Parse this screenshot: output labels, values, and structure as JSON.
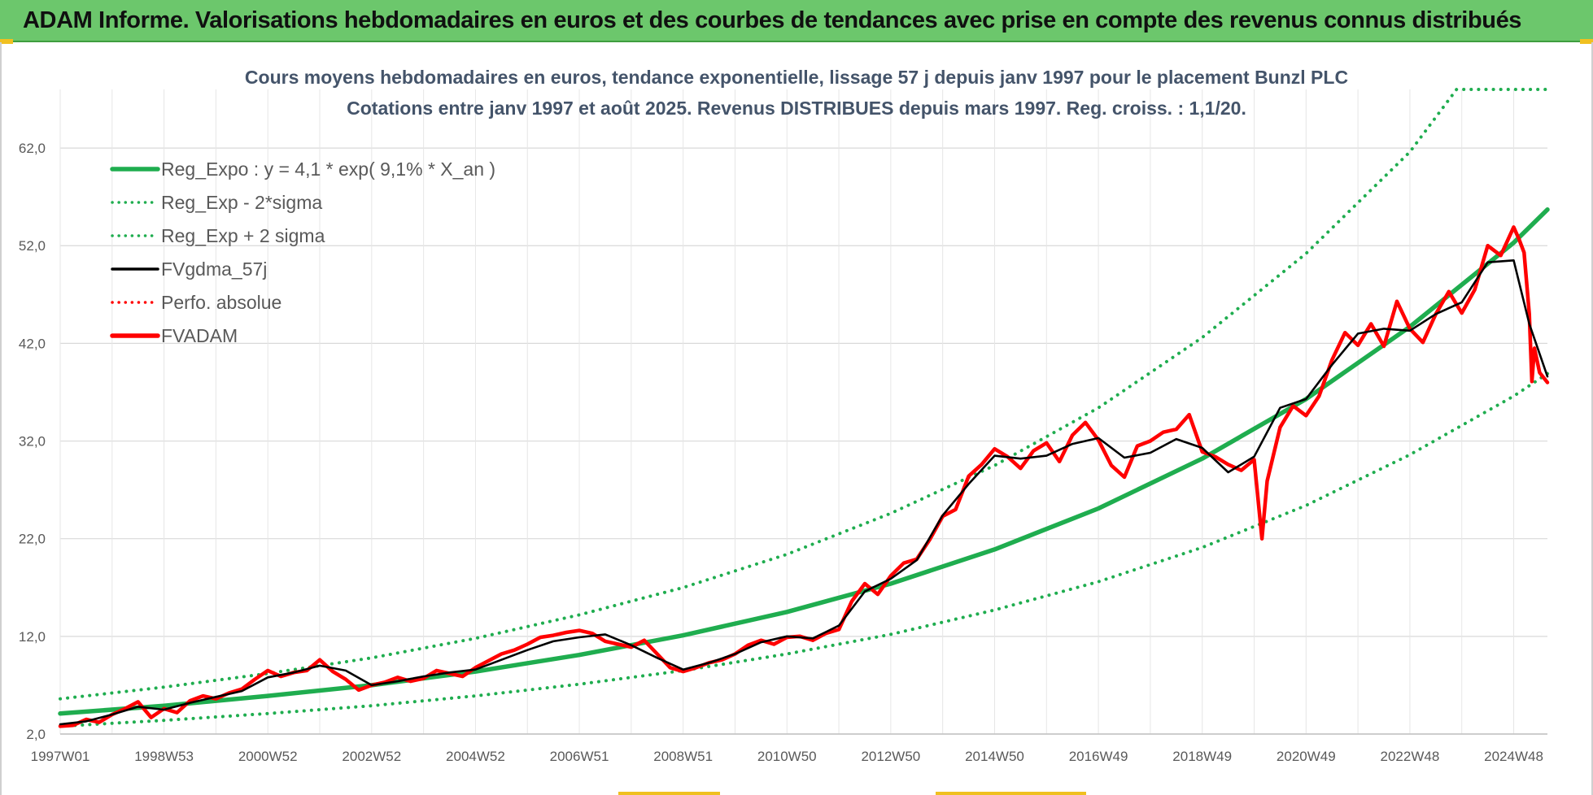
{
  "header": {
    "title": "ADAM Informe. Valorisations hebdomadaires en euros et des courbes de tendances avec prise en compte des revenus connus distribués"
  },
  "chart_data": {
    "type": "line",
    "title_line1": "Cours moyens hebdomadaires en euros, tendance exponentielle, lissage 57 j depuis janv 1997 pour le placement Bunzl PLC",
    "title_line2": "Cotations entre janv 1997 et août 2025.  Revenus DISTRIBUES depuis mars 1997. Reg. croiss. : 1,1/20.",
    "xlabel": "",
    "ylabel": "",
    "ylim": [
      2,
      68
    ],
    "xlim": [
      1997.0,
      2025.65
    ],
    "grid": true,
    "legend_position": "top-left",
    "y_ticks": [
      {
        "value": 2,
        "label": "2,0"
      },
      {
        "value": 12,
        "label": "12,0"
      },
      {
        "value": 22,
        "label": "22,0"
      },
      {
        "value": 32,
        "label": "32,0"
      },
      {
        "value": 42,
        "label": "42,0"
      },
      {
        "value": 52,
        "label": "52,0"
      },
      {
        "value": 62,
        "label": "62,0"
      }
    ],
    "x_ticks": [
      {
        "value": 1997.0,
        "label": "1997W01"
      },
      {
        "value": 1999.0,
        "label": "1998W53"
      },
      {
        "value": 2001.0,
        "label": "2000W52"
      },
      {
        "value": 2003.0,
        "label": "2002W52"
      },
      {
        "value": 2005.0,
        "label": "2004W52"
      },
      {
        "value": 2007.0,
        "label": "2006W51"
      },
      {
        "value": 2009.0,
        "label": "2008W51"
      },
      {
        "value": 2011.0,
        "label": "2010W50"
      },
      {
        "value": 2013.0,
        "label": "2012W50"
      },
      {
        "value": 2015.0,
        "label": "2014W50"
      },
      {
        "value": 2017.0,
        "label": "2016W49"
      },
      {
        "value": 2019.0,
        "label": "2018W49"
      },
      {
        "value": 2021.0,
        "label": "2020W49"
      },
      {
        "value": 2023.0,
        "label": "2022W48"
      },
      {
        "value": 2025.0,
        "label": "2024W48"
      }
    ],
    "series": [
      {
        "name": "Reg_Expo : y = 4,1 * exp( 9,1% *  X_an )",
        "color": "#1fad4f",
        "style": "solid",
        "x": [
          1997.0,
          1999.0,
          2001.0,
          2003.0,
          2005.0,
          2007.0,
          2009.0,
          2011.0,
          2013.0,
          2015.0,
          2017.0,
          2019.0,
          2021.0,
          2023.0,
          2025.0,
          2025.65
        ],
        "y": [
          4.1,
          4.9,
          5.9,
          7.0,
          8.4,
          10.1,
          12.1,
          14.5,
          17.4,
          20.9,
          25.1,
          30.2,
          36.3,
          43.7,
          52.3,
          55.7
        ]
      },
      {
        "name": "Reg_Exp - 2*sigma",
        "color": "#1fad4f",
        "style": "dotted",
        "x": [
          1997.0,
          1999.0,
          2001.0,
          2003.0,
          2005.0,
          2007.0,
          2009.0,
          2011.0,
          2013.0,
          2015.0,
          2017.0,
          2019.0,
          2021.0,
          2023.0,
          2025.0,
          2025.65
        ],
        "y": [
          2.8,
          3.4,
          4.1,
          4.9,
          5.9,
          7.1,
          8.5,
          10.2,
          12.2,
          14.7,
          17.6,
          21.1,
          25.4,
          30.6,
          36.6,
          38.9
        ]
      },
      {
        "name": "Reg_Exp + 2 sigma",
        "color": "#1fad4f",
        "style": "dotted",
        "x": [
          1997.0,
          1999.0,
          2001.0,
          2003.0,
          2005.0,
          2007.0,
          2009.0,
          2011.0,
          2013.0,
          2015.0,
          2017.0,
          2019.0,
          2021.0,
          2023.0,
          2023.9,
          2025.65
        ],
        "y": [
          5.6,
          6.8,
          8.2,
          9.8,
          11.8,
          14.2,
          17.0,
          20.4,
          24.6,
          29.5,
          35.4,
          42.6,
          51.2,
          61.6,
          68.0,
          68.0
        ]
      },
      {
        "name": "FVgdma_57j",
        "color": "#000000",
        "style": "solid",
        "x": [
          1997.0,
          1997.5,
          1998.0,
          1998.5,
          1999.0,
          1999.5,
          2000.0,
          2000.5,
          2001.0,
          2001.5,
          2002.0,
          2002.5,
          2003.0,
          2003.5,
          2004.0,
          2004.5,
          2005.0,
          2005.5,
          2006.0,
          2006.5,
          2007.0,
          2007.5,
          2008.0,
          2008.5,
          2009.0,
          2009.5,
          2010.0,
          2010.5,
          2011.0,
          2011.5,
          2012.0,
          2012.5,
          2013.0,
          2013.5,
          2014.0,
          2014.5,
          2015.0,
          2015.5,
          2016.0,
          2016.5,
          2017.0,
          2017.5,
          2018.0,
          2018.5,
          2019.0,
          2019.5,
          2020.0,
          2020.5,
          2021.0,
          2021.5,
          2022.0,
          2022.5,
          2023.0,
          2023.5,
          2024.0,
          2024.5,
          2025.0,
          2025.3,
          2025.65
        ],
        "y": [
          3.0,
          3.3,
          4.0,
          4.8,
          4.5,
          5.2,
          5.8,
          6.4,
          7.8,
          8.3,
          9.0,
          8.5,
          7.0,
          7.4,
          7.9,
          8.3,
          8.6,
          9.6,
          10.6,
          11.5,
          11.9,
          12.2,
          11.1,
          9.8,
          8.6,
          9.3,
          10.2,
          11.4,
          12.0,
          11.8,
          13.1,
          16.6,
          17.9,
          19.8,
          24.4,
          27.6,
          30.5,
          30.2,
          30.5,
          31.7,
          32.3,
          30.3,
          30.8,
          32.2,
          31.3,
          28.8,
          30.4,
          35.4,
          36.3,
          39.8,
          43.0,
          43.5,
          43.3,
          45.0,
          46.2,
          50.3,
          50.5,
          44.0,
          38.6
        ]
      },
      {
        "name": "Perfo. absolue",
        "color": "#ff0000",
        "style": "dotted",
        "x": [],
        "y": []
      },
      {
        "name": "FVADAM",
        "color": "#ff0000",
        "style": "solid",
        "x": [
          1997.0,
          1997.25,
          1997.5,
          1997.75,
          1998.0,
          1998.25,
          1998.5,
          1998.75,
          1999.0,
          1999.25,
          1999.5,
          1999.75,
          2000.0,
          2000.25,
          2000.5,
          2000.75,
          2001.0,
          2001.25,
          2001.5,
          2001.75,
          2002.0,
          2002.25,
          2002.5,
          2002.75,
          2003.0,
          2003.25,
          2003.5,
          2003.75,
          2004.0,
          2004.25,
          2004.5,
          2004.75,
          2005.0,
          2005.25,
          2005.5,
          2005.75,
          2006.0,
          2006.25,
          2006.5,
          2006.75,
          2007.0,
          2007.25,
          2007.5,
          2007.75,
          2008.0,
          2008.25,
          2008.5,
          2008.75,
          2009.0,
          2009.25,
          2009.5,
          2009.75,
          2010.0,
          2010.25,
          2010.5,
          2010.75,
          2011.0,
          2011.25,
          2011.5,
          2011.75,
          2012.0,
          2012.25,
          2012.5,
          2012.75,
          2013.0,
          2013.25,
          2013.5,
          2013.75,
          2014.0,
          2014.25,
          2014.5,
          2014.75,
          2015.0,
          2015.25,
          2015.5,
          2015.75,
          2016.0,
          2016.25,
          2016.5,
          2016.75,
          2017.0,
          2017.25,
          2017.5,
          2017.75,
          2018.0,
          2018.25,
          2018.5,
          2018.75,
          2019.0,
          2019.25,
          2019.5,
          2019.75,
          2020.0,
          2020.15,
          2020.25,
          2020.5,
          2020.75,
          2021.0,
          2021.25,
          2021.5,
          2021.75,
          2022.0,
          2022.25,
          2022.5,
          2022.75,
          2023.0,
          2023.25,
          2023.5,
          2023.75,
          2024.0,
          2024.25,
          2024.5,
          2024.75,
          2025.0,
          2025.1,
          2025.2,
          2025.3,
          2025.35,
          2025.4,
          2025.5,
          2025.65
        ],
        "y": [
          2.8,
          2.9,
          3.5,
          3.2,
          4.0,
          4.6,
          5.3,
          3.7,
          4.6,
          4.2,
          5.4,
          5.9,
          5.6,
          6.2,
          6.6,
          7.6,
          8.5,
          7.9,
          8.3,
          8.5,
          9.6,
          8.4,
          7.6,
          6.5,
          7.0,
          7.3,
          7.8,
          7.4,
          7.7,
          8.5,
          8.2,
          7.9,
          8.8,
          9.5,
          10.2,
          10.6,
          11.2,
          11.9,
          12.1,
          12.4,
          12.6,
          12.3,
          11.5,
          11.2,
          10.9,
          11.6,
          10.2,
          8.8,
          8.4,
          8.8,
          9.3,
          9.6,
          10.2,
          11.1,
          11.6,
          11.2,
          11.9,
          12.0,
          11.6,
          12.3,
          12.7,
          15.6,
          17.4,
          16.3,
          18.2,
          19.5,
          19.9,
          21.9,
          24.3,
          25.0,
          28.4,
          29.6,
          31.2,
          30.4,
          29.2,
          31.0,
          31.8,
          29.9,
          32.6,
          33.9,
          32.1,
          29.5,
          28.3,
          31.5,
          32.0,
          32.9,
          33.2,
          34.7,
          30.9,
          30.4,
          29.6,
          29.0,
          30.1,
          22.0,
          27.9,
          33.4,
          35.6,
          34.6,
          36.6,
          40.3,
          43.1,
          41.8,
          44.0,
          41.7,
          46.3,
          43.5,
          42.1,
          45.0,
          47.3,
          45.1,
          47.5,
          52.0,
          51.0,
          53.9,
          52.7,
          51.3,
          45.0,
          38.1,
          41.5,
          39.0,
          38.0
        ]
      }
    ]
  }
}
